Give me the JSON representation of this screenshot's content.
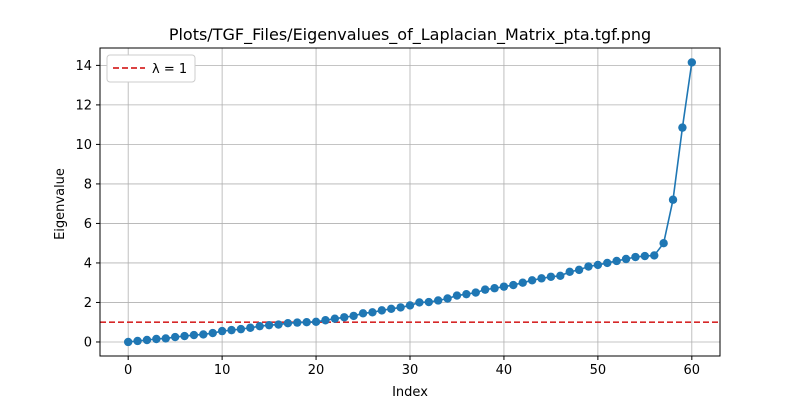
{
  "chart_data": {
    "type": "line",
    "title": "Plots/TGF_Files/Eigenvalues_of_Laplacian_Matrix_pta.tgf.png",
    "xlabel": "Index",
    "ylabel": "Eigenvalue",
    "xlim": [
      -3,
      63
    ],
    "ylim": [
      -0.71,
      14.88
    ],
    "xticks": [
      0,
      10,
      20,
      30,
      40,
      50,
      60
    ],
    "yticks": [
      0,
      2,
      4,
      6,
      8,
      10,
      12,
      14
    ],
    "grid": true,
    "legend_position": "top-left",
    "series": [
      {
        "color": "#1f77b4",
        "marker": "circle",
        "x": [
          0,
          1,
          2,
          3,
          4,
          5,
          6,
          7,
          8,
          9,
          10,
          11,
          12,
          13,
          14,
          15,
          16,
          17,
          18,
          19,
          20,
          21,
          22,
          23,
          24,
          25,
          26,
          27,
          28,
          29,
          30,
          31,
          32,
          33,
          34,
          35,
          36,
          37,
          38,
          39,
          40,
          41,
          42,
          43,
          44,
          45,
          46,
          47,
          48,
          49,
          50,
          51,
          52,
          53,
          54,
          55,
          56,
          57,
          58,
          59,
          60
        ],
        "y": [
          0,
          0.05,
          0.1,
          0.15,
          0.18,
          0.25,
          0.3,
          0.35,
          0.38,
          0.45,
          0.55,
          0.6,
          0.65,
          0.72,
          0.8,
          0.85,
          0.88,
          0.95,
          0.98,
          1.0,
          1.02,
          1.1,
          1.18,
          1.25,
          1.32,
          1.45,
          1.5,
          1.6,
          1.68,
          1.75,
          1.85,
          2.0,
          2.02,
          2.1,
          2.2,
          2.35,
          2.42,
          2.5,
          2.65,
          2.72,
          2.8,
          2.88,
          3.0,
          3.12,
          3.22,
          3.3,
          3.35,
          3.55,
          3.65,
          3.82,
          3.9,
          4.0,
          4.1,
          4.2,
          4.3,
          4.35,
          4.38,
          5.0,
          7.2,
          10.85,
          14.15
        ]
      }
    ],
    "reference_line": {
      "y": 1,
      "label": "λ = 1",
      "color": "#d62728",
      "style": "dashed"
    }
  }
}
